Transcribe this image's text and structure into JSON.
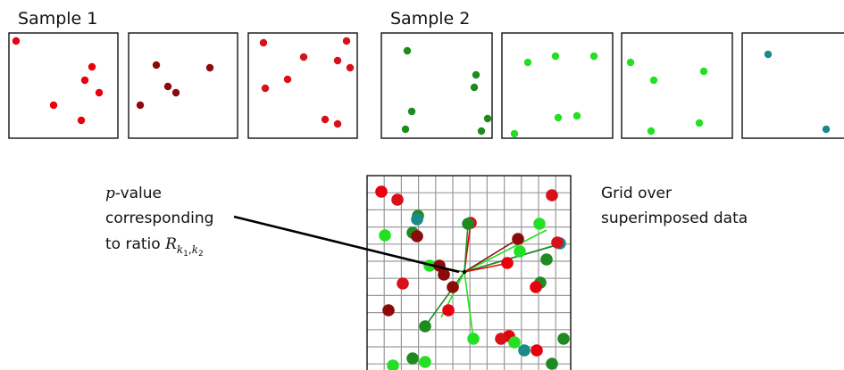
{
  "colors": {
    "red": "#e8000e",
    "dark_red": "#8c0a0a",
    "crimson": "#d8101a",
    "dark_green": "#1f8a1f",
    "light_green": "#22e022",
    "teal": "#1a8a8a"
  },
  "samples": [
    {
      "label": "Sample 1"
    },
    {
      "label": "Sample 2"
    }
  ],
  "annotations": {
    "pvalue": {
      "line1_math": "p",
      "line1_rest": "-value",
      "line2": "corresponding",
      "line3_text": "to ratio ",
      "line3_math": "R",
      "line3_sub": "k",
      "line3_sub1": "1",
      "line3_comma": ",",
      "line3_sub2": "2"
    },
    "grid": {
      "line1": "Grid over",
      "line2": "superimposed data"
    }
  }
}
